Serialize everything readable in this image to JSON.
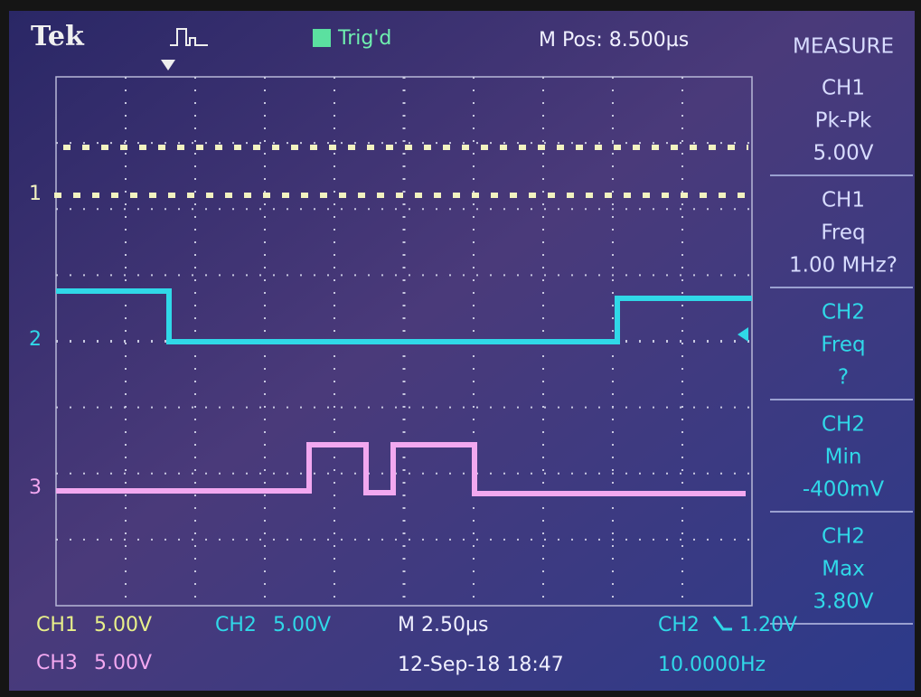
{
  "header": {
    "brand": "Tek",
    "trigger_state": "Trig'd",
    "position": "M Pos: 8.500µs"
  },
  "measure": {
    "title": "MEASURE",
    "items": [
      {
        "source": "CH1",
        "label": "Pk-Pk",
        "value": "5.00V"
      },
      {
        "source": "CH1",
        "label": "Freq",
        "value": "1.00 MHz?"
      },
      {
        "source": "CH2",
        "label": "Freq",
        "value": "?"
      },
      {
        "source": "CH2",
        "label": "Min",
        "value": "-400mV"
      },
      {
        "source": "CH2",
        "label": "Max",
        "value": "3.80V"
      }
    ]
  },
  "channel_markers": [
    "1",
    "2",
    "3"
  ],
  "footer": {
    "ch1": "CH1",
    "ch1_scale": "5.00V",
    "ch2": "CH2",
    "ch2_scale": "5.00V",
    "timebase": "M 2.50µs",
    "trigger_source": "CH2",
    "trigger_level": "1.20V",
    "ch3": "CH3",
    "ch3_scale": "5.00V",
    "datetime": "12-Sep-18 18:47",
    "frequency": "10.0000Hz"
  }
}
